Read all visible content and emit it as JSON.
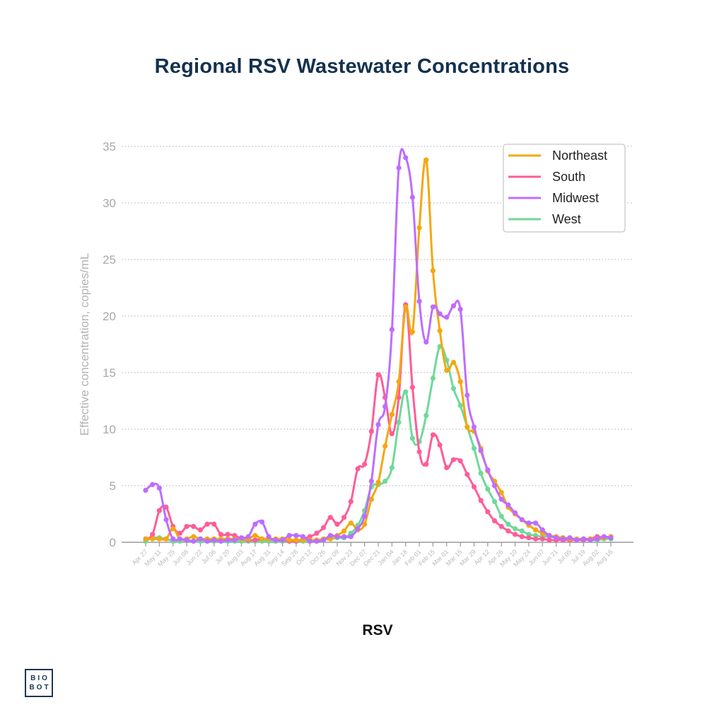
{
  "chart_data": {
    "type": "line",
    "title": "Regional RSV Wastewater Concentrations",
    "xlabel": "RSV",
    "ylabel": "Effective concentration, copies/mL",
    "ylim": [
      0,
      35
    ],
    "yticks": [
      0,
      5,
      10,
      15,
      20,
      25,
      30,
      35
    ],
    "grid": true,
    "legend_position": "top-right",
    "x_tick_labels": [
      "Apr 27",
      "May 11",
      "May 25",
      "Jun 08",
      "Jun 22",
      "Jul 06",
      "Jul 20",
      "Aug 03",
      "Aug 17",
      "Aug 31",
      "Sep 14",
      "Sep 28",
      "Oct 12",
      "Oct 26",
      "Nov 09",
      "Nov 23",
      "Dec 07",
      "Dec 21",
      "Jan 04",
      "Jan 18",
      "Feb 01",
      "Feb 15",
      "Mar 01",
      "Mar 15",
      "Mar 29",
      "Apr 12",
      "Apr 26",
      "May 10",
      "May 24",
      "Jun 07",
      "Jun 21",
      "Jul 05",
      "Jul 19",
      "Aug 02",
      "Aug 16"
    ],
    "x_points_per_tick": 2,
    "series": [
      {
        "name": "Northeast",
        "color": "#f5a70f",
        "values": [
          0.3,
          0.3,
          0.3,
          0.3,
          1.2,
          0.3,
          0.3,
          0.5,
          0.3,
          0.3,
          0.3,
          0.3,
          0.3,
          0.3,
          0.3,
          0.3,
          0.6,
          0.3,
          0.3,
          0.3,
          0.3,
          0.2,
          0.2,
          0.2,
          0.2,
          0.2,
          0.3,
          0.3,
          0.6,
          1.0,
          1.7,
          1.1,
          1.6,
          3.8,
          5.3,
          8.5,
          11.3,
          14.2,
          20.8,
          18.6,
          27.8,
          33.8,
          24.0,
          18.7,
          15.2,
          15.9,
          14.2,
          10.2,
          9.8,
          8.3,
          6.3,
          5.4,
          4.4,
          3.1,
          2.5,
          2.0,
          1.5,
          1.1,
          0.8,
          0.6,
          0.5,
          0.4,
          0.3,
          0.3,
          0.3,
          0.3,
          0.3,
          0.4,
          0.5
        ]
      },
      {
        "name": "South",
        "color": "#ff5c98",
        "values": [
          0.3,
          0.7,
          2.8,
          3.1,
          1.4,
          0.8,
          1.4,
          1.4,
          1.1,
          1.6,
          1.6,
          0.7,
          0.7,
          0.6,
          0.3,
          0.2,
          0.2,
          0.3,
          0.3,
          0.2,
          0.2,
          0.1,
          0.1,
          0.3,
          0.5,
          0.8,
          1.3,
          2.2,
          1.6,
          2.2,
          3.6,
          6.5,
          6.9,
          9.8,
          14.8,
          12.8,
          9.6,
          12.8,
          21.0,
          13.7,
          8.0,
          6.9,
          9.5,
          8.6,
          6.6,
          7.3,
          7.2,
          6.0,
          4.9,
          3.7,
          2.7,
          1.9,
          1.4,
          1.0,
          0.7,
          0.5,
          0.4,
          0.3,
          0.3,
          0.2,
          0.2,
          0.2,
          0.2,
          0.2,
          0.2,
          0.3,
          0.5,
          0.4,
          0.5
        ]
      },
      {
        "name": "Midwest",
        "color": "#be6dff",
        "values": [
          4.6,
          5.1,
          4.8,
          2.0,
          0.3,
          0.3,
          0.2,
          0.1,
          0.3,
          0.1,
          0.2,
          0.1,
          0.2,
          0.2,
          0.4,
          0.5,
          1.6,
          1.8,
          0.5,
          0.2,
          0.2,
          0.6,
          0.6,
          0.5,
          0.1,
          0.1,
          0.2,
          0.6,
          0.5,
          0.5,
          0.5,
          1.2,
          2.3,
          5.4,
          10.4,
          12.0,
          18.8,
          33.1,
          34.0,
          30.5,
          21.3,
          17.7,
          20.8,
          20.2,
          19.9,
          20.9,
          20.6,
          13.0,
          10.2,
          8.1,
          6.4,
          5.0,
          3.8,
          3.3,
          2.6,
          2.0,
          1.7,
          1.7,
          1.1,
          0.6,
          0.4,
          0.3,
          0.4,
          0.2,
          0.3,
          0.2,
          0.3,
          0.5,
          0.4
        ]
      },
      {
        "name": "West",
        "color": "#6fd99a",
        "values": [
          0.1,
          0.4,
          0.4,
          0.3,
          0.1,
          0.1,
          0.2,
          0.1,
          0.1,
          0.1,
          0.1,
          0.1,
          0.1,
          0.1,
          0.1,
          0.1,
          0.1,
          0.1,
          0.1,
          0.1,
          0.1,
          0.1,
          0.1,
          0.1,
          0.1,
          0.1,
          0.2,
          0.3,
          0.4,
          0.4,
          0.8,
          1.5,
          2.8,
          4.9,
          5.1,
          5.4,
          6.6,
          10.6,
          13.3,
          9.2,
          8.9,
          11.2,
          14.5,
          17.3,
          16.1,
          13.6,
          12.1,
          10.2,
          8.3,
          6.1,
          4.7,
          3.6,
          2.3,
          1.6,
          1.2,
          1.0,
          0.7,
          0.6,
          0.5,
          0.5,
          0.4,
          0.4,
          0.2,
          0.2,
          0.2,
          0.2,
          0.2,
          0.3,
          0.3
        ]
      }
    ]
  },
  "footer": {
    "logo_line1": "BIO",
    "logo_line2": "BOT"
  }
}
